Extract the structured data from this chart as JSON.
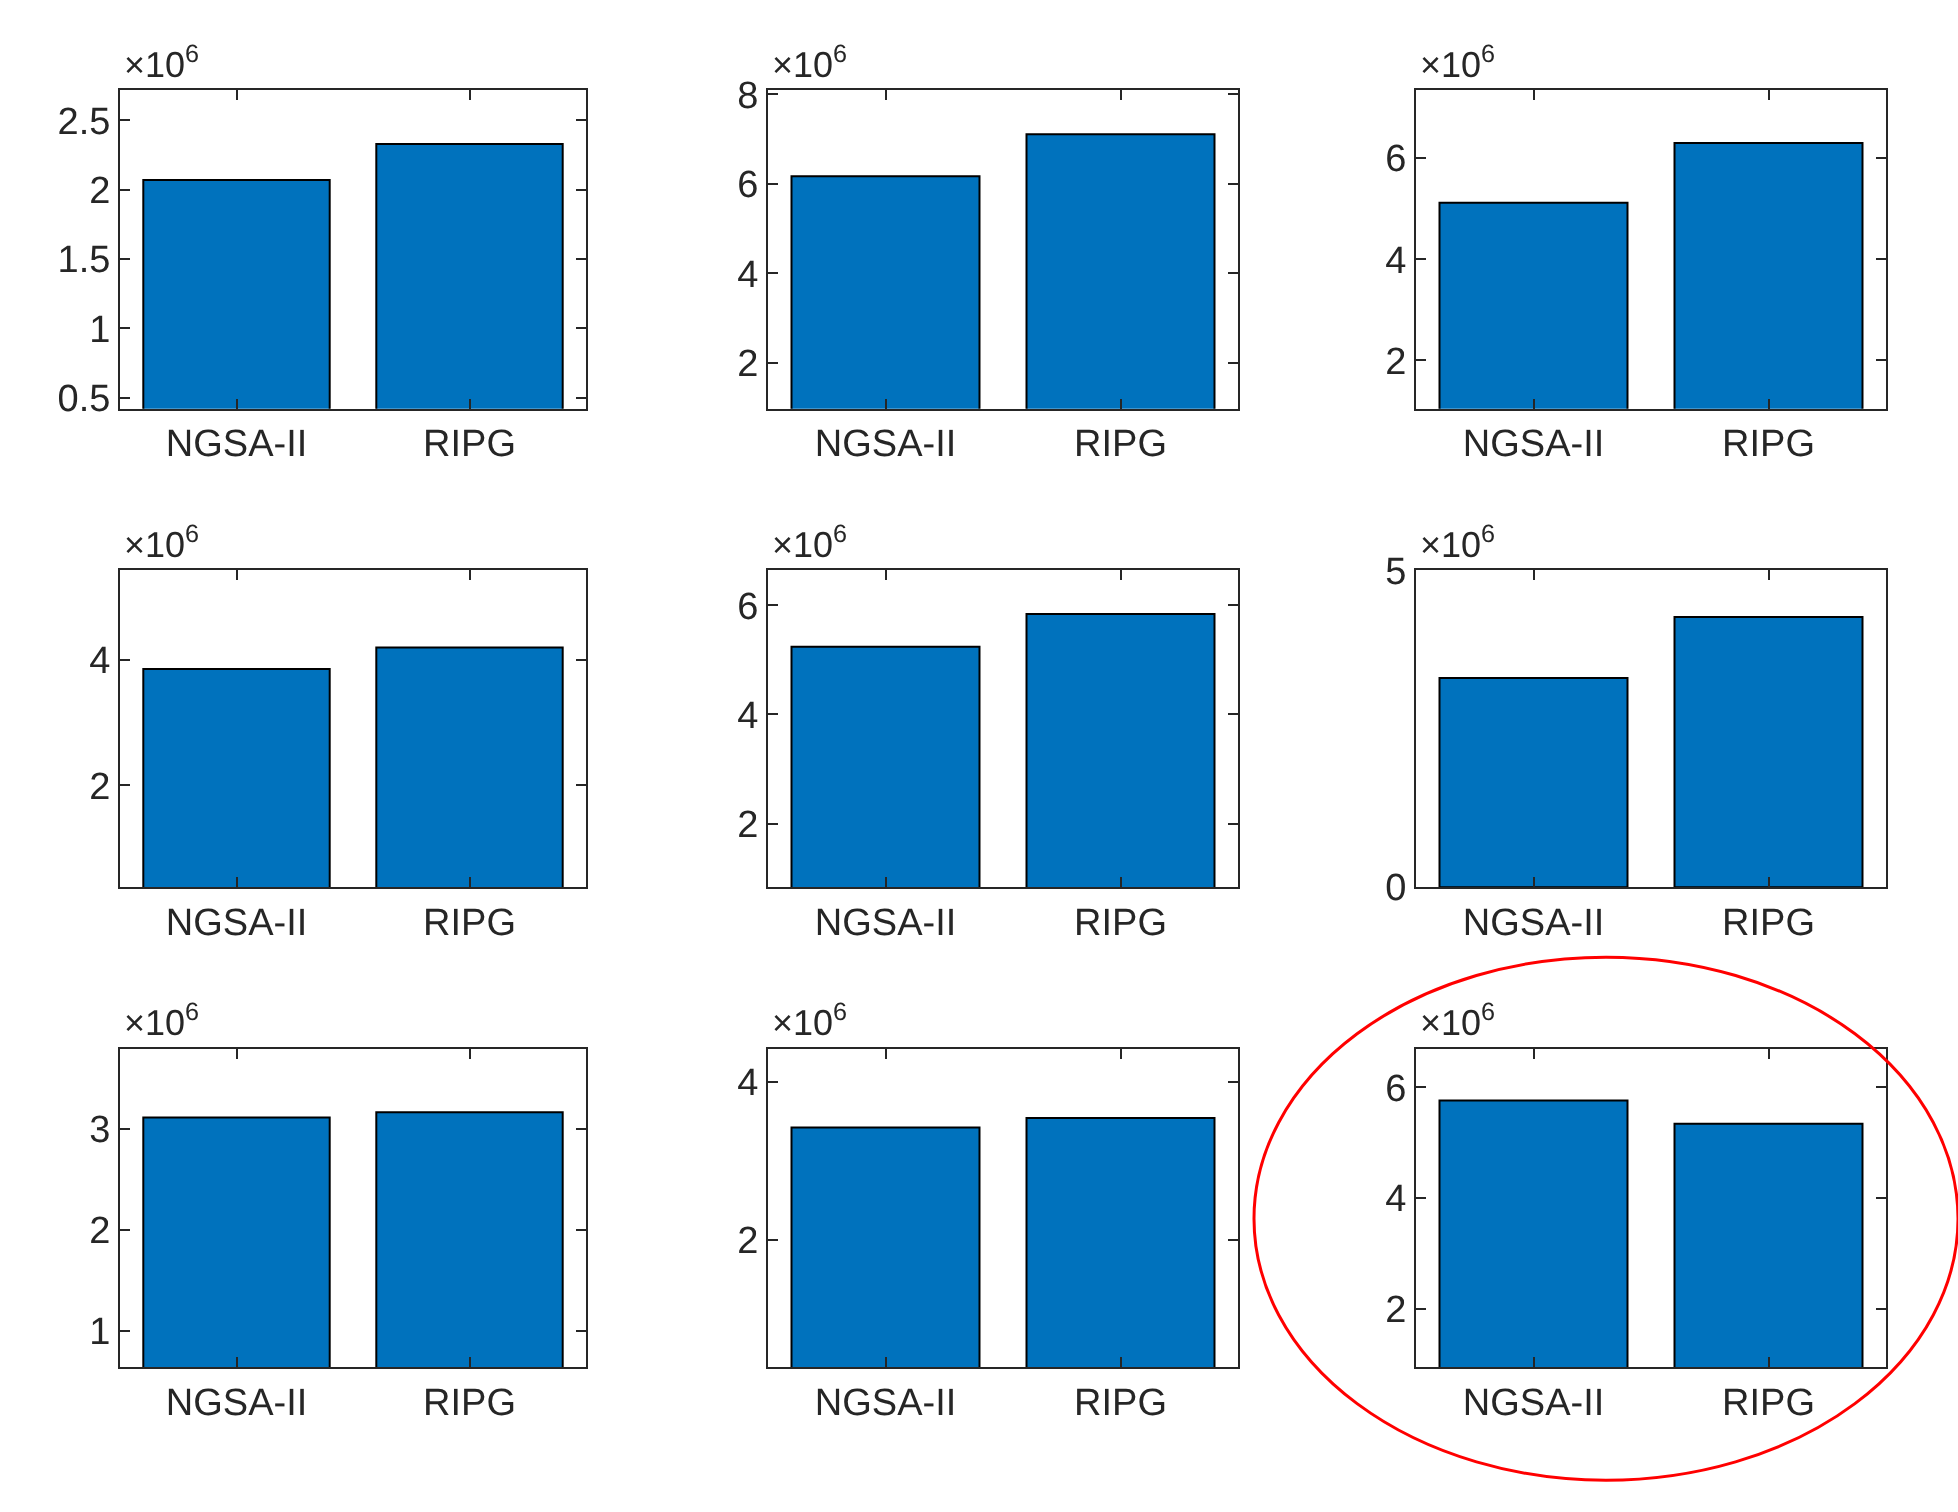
{
  "chart_data": [
    {
      "type": "bar",
      "categories": [
        "NGSA-II",
        "RIPG"
      ],
      "values": [
        2.07,
        2.33
      ],
      "color": "#0072bd",
      "ylim": [
        0.42,
        2.72
      ],
      "yticks": [
        0.5,
        1,
        1.5,
        2,
        2.5
      ],
      "annotations": [
        "×10$^{6}$"
      ]
    },
    {
      "type": "bar",
      "categories": [
        "NGSA-II",
        "RIPG"
      ],
      "values": [
        6.17,
        7.11
      ],
      "color": "#0072bd",
      "ylim": [
        0.97,
        8.1
      ],
      "yticks": [
        2,
        4,
        6,
        8
      ],
      "annotations": [
        "×10$^{6}$"
      ]
    },
    {
      "type": "bar",
      "categories": [
        "NGSA-II",
        "RIPG"
      ],
      "values": [
        5.12,
        6.3
      ],
      "color": "#0072bd",
      "ylim": [
        1.04,
        7.35
      ],
      "yticks": [
        2,
        4,
        6
      ],
      "annotations": [
        "×10$^{6}$"
      ]
    },
    {
      "type": "bar",
      "categories": [
        "NGSA-II",
        "RIPG"
      ],
      "values": [
        3.85,
        4.19
      ],
      "color": "#0072bd",
      "ylim": [
        0.38,
        5.42
      ],
      "yticks": [
        2,
        4
      ],
      "annotations": [
        "×10$^{6}$"
      ]
    },
    {
      "type": "bar",
      "categories": [
        "NGSA-II",
        "RIPG"
      ],
      "values": [
        5.24,
        5.84
      ],
      "color": "#0072bd",
      "ylim": [
        0.84,
        6.64
      ],
      "yticks": [
        2,
        4,
        6
      ],
      "annotations": [
        "×10$^{6}$"
      ]
    },
    {
      "type": "bar",
      "categories": [
        "NGSA-II",
        "RIPG"
      ],
      "values": [
        3.3,
        4.26
      ],
      "color": "#0072bd",
      "ylim": [
        0,
        5
      ],
      "yticks": [
        0,
        5
      ],
      "annotations": [
        "×10$^{6}$"
      ]
    },
    {
      "type": "bar",
      "categories": [
        "NGSA-II",
        "RIPG"
      ],
      "values": [
        3.11,
        3.16
      ],
      "color": "#0072bd",
      "ylim": [
        0.64,
        3.79
      ],
      "yticks": [
        1,
        2,
        3
      ],
      "annotations": [
        "×10$^{6}$"
      ]
    },
    {
      "type": "bar",
      "categories": [
        "NGSA-II",
        "RIPG"
      ],
      "values": [
        3.42,
        3.54
      ],
      "color": "#0072bd",
      "ylim": [
        0.38,
        4.42
      ],
      "yticks": [
        2,
        4
      ],
      "annotations": [
        "×10$^{6}$"
      ]
    },
    {
      "type": "bar",
      "categories": [
        "NGSA-II",
        "RIPG"
      ],
      "values": [
        5.76,
        5.34
      ],
      "color": "#0072bd",
      "ylim": [
        0.94,
        6.7
      ],
      "yticks": [
        2,
        4,
        6
      ],
      "annotations": [
        "×10$^{6}$"
      ]
    }
  ]
}
